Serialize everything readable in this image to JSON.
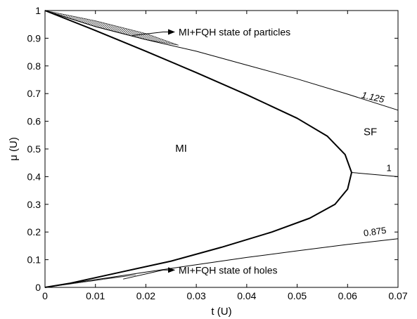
{
  "chart_data": {
    "type": "line",
    "xlabel": "t (U)",
    "ylabel": "μ (U)",
    "xlim": [
      0,
      0.07
    ],
    "ylim": [
      0,
      1
    ],
    "xticks": [
      "0",
      "0.01",
      "0.02",
      "0.03",
      "0.04",
      "0.05",
      "0.06",
      "0.07"
    ],
    "yticks": [
      "0",
      "0.1",
      "0.2",
      "0.3",
      "0.4",
      "0.5",
      "0.6",
      "0.7",
      "0.8",
      "0.9",
      "1"
    ],
    "grid": false,
    "regions": [
      {
        "label": "MI",
        "x": 0.027,
        "y": 0.49
      },
      {
        "label": "SF",
        "x": 0.0645,
        "y": 0.55
      }
    ],
    "series": [
      {
        "label_text": "1",
        "style": "bold",
        "points": [
          [
            0,
            1
          ],
          [
            0.01,
            0.928
          ],
          [
            0.02,
            0.853
          ],
          [
            0.03,
            0.776
          ],
          [
            0.04,
            0.696
          ],
          [
            0.05,
            0.611
          ],
          [
            0.056,
            0.546
          ],
          [
            0.0595,
            0.48
          ],
          [
            0.0608,
            0.415
          ],
          [
            0.06,
            0.355
          ],
          [
            0.0575,
            0.3
          ],
          [
            0.0525,
            0.25
          ],
          [
            0.045,
            0.2
          ],
          [
            0.035,
            0.145
          ],
          [
            0.025,
            0.095
          ],
          [
            0.015,
            0.055
          ],
          [
            0.005,
            0.015
          ],
          [
            0,
            0
          ]
        ],
        "tail": [
          [
            0.0608,
            0.415
          ],
          [
            0.07,
            0.4
          ]
        ]
      },
      {
        "label_text": "1.125",
        "style": "thin",
        "points": [
          [
            0,
            1
          ],
          [
            0.01,
            0.942
          ],
          [
            0.02,
            0.895
          ],
          [
            0.03,
            0.853
          ],
          [
            0.04,
            0.803
          ],
          [
            0.05,
            0.753
          ],
          [
            0.06,
            0.698
          ],
          [
            0.07,
            0.64
          ]
        ]
      },
      {
        "label_text": "0.875",
        "style": "thin",
        "points": [
          [
            0,
            0
          ],
          [
            0.01,
            0.028
          ],
          [
            0.02,
            0.055
          ],
          [
            0.03,
            0.082
          ],
          [
            0.04,
            0.108
          ],
          [
            0.05,
            0.132
          ],
          [
            0.06,
            0.155
          ],
          [
            0.07,
            0.176
          ]
        ]
      }
    ],
    "annotations": [
      {
        "text": "MI+FQH state of particles",
        "arrow_from": [
          0.026,
          0.91
        ],
        "arrow_to": [
          0.0173,
          0.91
        ],
        "text_x": 0.0265,
        "text_y": 0.91
      },
      {
        "text": "MI+FQH state of holes",
        "arrow_from": [
          0.0265,
          0.045
        ],
        "arrow_to": [
          0.0155,
          0.03
        ],
        "text_x": 0.0265,
        "text_y": 0.05
      }
    ],
    "hatched_regions": [
      {
        "label": "particles",
        "upper": [
          [
            0,
            1
          ],
          [
            0.01,
            0.963
          ],
          [
            0.02,
            0.917
          ],
          [
            0.0265,
            0.875
          ]
        ],
        "lower": [
          [
            0.0265,
            0.875
          ],
          [
            0.02,
            0.895
          ],
          [
            0.01,
            0.942
          ],
          [
            0,
            1
          ]
        ]
      },
      {
        "label": "holes",
        "upper": [
          [
            0,
            0
          ],
          [
            0.005,
            0.014
          ],
          [
            0.012,
            0.032
          ],
          [
            0.018,
            0.045
          ]
        ],
        "lower": [
          [
            0.018,
            0.045
          ],
          [
            0.012,
            0.03
          ],
          [
            0.005,
            0.012
          ],
          [
            0,
            0
          ]
        ]
      }
    ]
  }
}
